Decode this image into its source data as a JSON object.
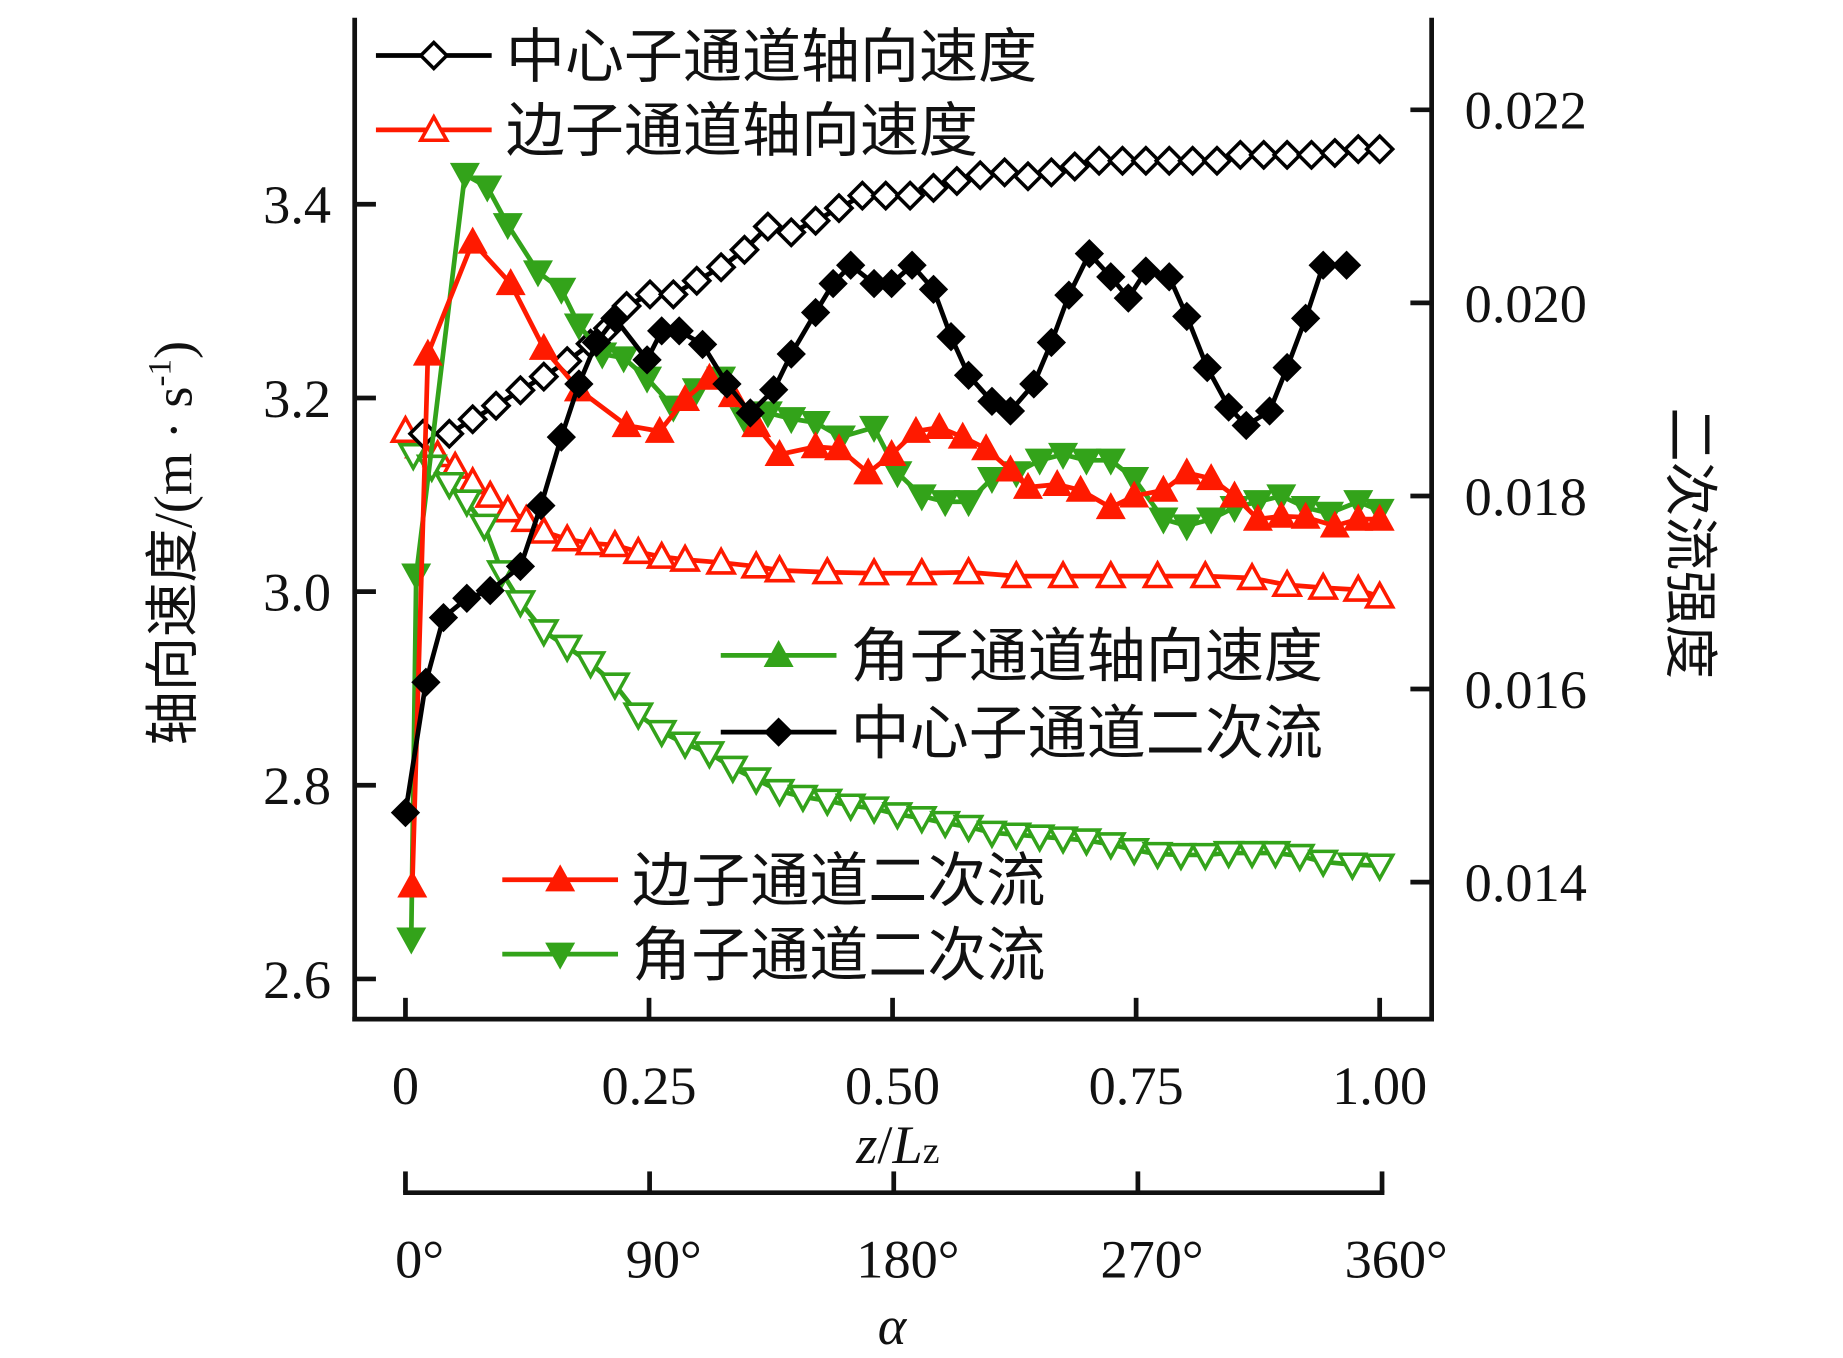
{
  "chart_data": {
    "type": "line",
    "xlabel": "z/Lz",
    "xlabel_parts": {
      "z": "z",
      "slash": "/",
      "L": "L",
      "sub": "z"
    },
    "secondary_xlabel": "α",
    "ylabel_left": "轴向速度/(m · s",
    "ylabel_left_sup": "-1",
    "ylabel_left_close": ")",
    "ylabel_right": "二次流强度",
    "xlim": [
      0,
      1.0
    ],
    "ylim_left": [
      2.55,
      3.58
    ],
    "ylim_right": [
      0.013,
      0.0231
    ],
    "x_ticks": [
      "0",
      "0.25",
      "0.50",
      "0.75",
      "1.00"
    ],
    "x_tick_values": [
      0,
      0.25,
      0.5,
      0.75,
      1.0
    ],
    "alpha_ticks": [
      "0°",
      "90°",
      "180°",
      "270°",
      "360°"
    ],
    "alpha_tick_values": [
      0,
      0.25,
      0.5,
      0.75,
      1.0
    ],
    "y_left_ticks": [
      "2.6",
      "2.8",
      "3.0",
      "3.2",
      "3.4"
    ],
    "y_left_tick_values": [
      2.6,
      2.8,
      3.0,
      3.2,
      3.4
    ],
    "y_right_ticks": [
      "0.014",
      "0.016",
      "0.018",
      "0.020",
      "0.022"
    ],
    "y_right_tick_values": [
      0.014,
      0.016,
      0.018,
      0.02,
      0.022
    ],
    "grid": false,
    "series": [
      {
        "name": "中心子通道轴向速度",
        "axis": "left",
        "color": "#000000",
        "marker": "diamond-open",
        "x": [
          0.018,
          0.045,
          0.069,
          0.093,
          0.118,
          0.142,
          0.166,
          0.19,
          0.208,
          0.227,
          0.251,
          0.275,
          0.299,
          0.324,
          0.348,
          0.372,
          0.396,
          0.421,
          0.445,
          0.469,
          0.493,
          0.518,
          0.542,
          0.566,
          0.59,
          0.615,
          0.639,
          0.663,
          0.687,
          0.712,
          0.736,
          0.76,
          0.784,
          0.808,
          0.833,
          0.857,
          0.881,
          0.905,
          0.93,
          0.954,
          0.978,
          1.0
        ],
        "y": [
          3.163,
          3.163,
          3.178,
          3.192,
          3.208,
          3.222,
          3.238,
          3.256,
          3.272,
          3.295,
          3.307,
          3.307,
          3.321,
          3.335,
          3.353,
          3.377,
          3.371,
          3.383,
          3.396,
          3.409,
          3.409,
          3.409,
          3.417,
          3.424,
          3.43,
          3.433,
          3.429,
          3.433,
          3.439,
          3.445,
          3.445,
          3.445,
          3.445,
          3.445,
          3.445,
          3.451,
          3.451,
          3.451,
          3.451,
          3.453,
          3.457,
          3.457
        ]
      },
      {
        "name": "边子通道轴向速度",
        "axis": "left",
        "color": "#ff1a00",
        "marker": "triangle-up-open",
        "x": [
          0,
          0.015,
          0.033,
          0.051,
          0.069,
          0.087,
          0.105,
          0.124,
          0.142,
          0.166,
          0.19,
          0.215,
          0.239,
          0.263,
          0.287,
          0.324,
          0.36,
          0.384,
          0.433,
          0.481,
          0.53,
          0.578,
          0.627,
          0.675,
          0.724,
          0.772,
          0.821,
          0.869,
          0.905,
          0.942,
          0.978,
          1.0
        ],
        "y": [
          3.166,
          3.15,
          3.141,
          3.129,
          3.113,
          3.099,
          3.084,
          3.074,
          3.062,
          3.054,
          3.05,
          3.048,
          3.041,
          3.036,
          3.033,
          3.03,
          3.026,
          3.022,
          3.02,
          3.019,
          3.019,
          3.02,
          3.016,
          3.016,
          3.016,
          3.016,
          3.016,
          3.014,
          3.007,
          3.004,
          3.002,
          2.995
        ]
      },
      {
        "name": "角子通道轴向速度",
        "axis": "left",
        "color": "#33a31a",
        "marker": "triangle-down-open",
        "x": [
          0.008,
          0.027,
          0.045,
          0.063,
          0.081,
          0.099,
          0.118,
          0.142,
          0.166,
          0.19,
          0.215,
          0.239,
          0.263,
          0.287,
          0.312,
          0.336,
          0.36,
          0.384,
          0.408,
          0.433,
          0.457,
          0.481,
          0.505,
          0.53,
          0.554,
          0.578,
          0.602,
          0.627,
          0.651,
          0.675,
          0.699,
          0.724,
          0.748,
          0.772,
          0.796,
          0.821,
          0.845,
          0.869,
          0.893,
          0.918,
          0.942,
          0.972,
          1.0
        ],
        "y": [
          3.141,
          3.129,
          3.111,
          3.093,
          3.068,
          3.02,
          2.989,
          2.959,
          2.943,
          2.926,
          2.904,
          2.873,
          2.855,
          2.843,
          2.833,
          2.818,
          2.806,
          2.794,
          2.788,
          2.784,
          2.779,
          2.776,
          2.77,
          2.766,
          2.761,
          2.757,
          2.751,
          2.749,
          2.747,
          2.745,
          2.743,
          2.739,
          2.733,
          2.729,
          2.728,
          2.728,
          2.73,
          2.73,
          2.73,
          2.727,
          2.721,
          2.718,
          2.717
        ]
      },
      {
        "name": "中心子通道二次流",
        "axis": "right",
        "color": "#000000",
        "marker": "diamond-filled",
        "x": [
          0,
          0.021,
          0.039,
          0.063,
          0.087,
          0.118,
          0.139,
          0.16,
          0.178,
          0.196,
          0.215,
          0.248,
          0.263,
          0.281,
          0.305,
          0.33,
          0.354,
          0.378,
          0.396,
          0.421,
          0.439,
          0.457,
          0.481,
          0.499,
          0.52,
          0.542,
          0.56,
          0.578,
          0.602,
          0.621,
          0.645,
          0.663,
          0.681,
          0.702,
          0.724,
          0.742,
          0.76,
          0.784,
          0.802,
          0.823,
          0.845,
          0.863,
          0.887,
          0.905,
          0.924,
          0.942,
          0.966
        ],
        "y": [
          0.01472,
          0.01607,
          0.01674,
          0.01694,
          0.01702,
          0.01727,
          0.0179,
          0.01861,
          0.01916,
          0.01959,
          0.01984,
          0.01941,
          0.01971,
          0.01971,
          0.01957,
          0.01916,
          0.01886,
          0.0191,
          0.01947,
          0.0199,
          0.0202,
          0.02039,
          0.0202,
          0.0202,
          0.02039,
          0.02014,
          0.01965,
          0.01925,
          0.01898,
          0.01888,
          0.01916,
          0.01959,
          0.02008,
          0.02051,
          0.02027,
          0.02005,
          0.02033,
          0.02027,
          0.01986,
          0.01933,
          0.01892,
          0.01873,
          0.01888,
          0.01933,
          0.01984,
          0.02039,
          0.02039
        ]
      },
      {
        "name": "边子通道二次流",
        "axis": "right",
        "color": "#ff1a00",
        "marker": "triangle-up-filled",
        "x": [
          0.007,
          0.023,
          0.069,
          0.108,
          0.142,
          0.178,
          0.227,
          0.261,
          0.287,
          0.312,
          0.336,
          0.36,
          0.384,
          0.421,
          0.445,
          0.475,
          0.499,
          0.524,
          0.548,
          0.572,
          0.596,
          0.621,
          0.639,
          0.669,
          0.693,
          0.724,
          0.748,
          0.778,
          0.802,
          0.827,
          0.851,
          0.875,
          0.899,
          0.924,
          0.954,
          0.978,
          1.0
        ],
        "y": [
          0.01396,
          0.01947,
          0.02063,
          0.0202,
          0.01953,
          0.0191,
          0.01873,
          0.01867,
          0.019,
          0.01922,
          0.01904,
          0.01873,
          0.01843,
          0.01851,
          0.01849,
          0.01824,
          0.01843,
          0.01867,
          0.01871,
          0.01861,
          0.01849,
          0.01827,
          0.01809,
          0.01812,
          0.01806,
          0.01788,
          0.018,
          0.01806,
          0.01824,
          0.01818,
          0.018,
          0.01776,
          0.01779,
          0.01778,
          0.01769,
          0.01776,
          0.01776
        ]
      },
      {
        "name": "角子通道二次流",
        "axis": "right",
        "color": "#33a31a",
        "marker": "triangle-down-filled",
        "x": [
          0.006,
          0.011,
          0.061,
          0.084,
          0.105,
          0.136,
          0.16,
          0.178,
          0.202,
          0.224,
          0.248,
          0.275,
          0.299,
          0.324,
          0.348,
          0.372,
          0.396,
          0.421,
          0.447,
          0.481,
          0.505,
          0.53,
          0.554,
          0.578,
          0.602,
          0.627,
          0.651,
          0.675,
          0.699,
          0.724,
          0.748,
          0.778,
          0.802,
          0.827,
          0.851,
          0.875,
          0.899,
          0.924,
          0.948,
          0.978,
          1.0
        ],
        "y": [
          0.01341,
          0.01718,
          0.02133,
          0.0212,
          0.02081,
          0.02032,
          0.02014,
          0.01977,
          0.01947,
          0.01943,
          0.01922,
          0.01892,
          0.0191,
          0.01922,
          0.0188,
          0.01886,
          0.0188,
          0.01876,
          0.01861,
          0.01871,
          0.01824,
          0.018,
          0.01794,
          0.01794,
          0.01818,
          0.01824,
          0.01837,
          0.01843,
          0.01837,
          0.01837,
          0.01818,
          0.01776,
          0.01769,
          0.01776,
          0.01788,
          0.01794,
          0.018,
          0.01788,
          0.01782,
          0.01794,
          0.01785
        ]
      }
    ],
    "legend": [
      {
        "label": "中心子通道轴向速度",
        "series": 0,
        "placement": "top-left"
      },
      {
        "label": "边子通道轴向速度",
        "series": 1,
        "placement": "top-left"
      },
      {
        "label": "角子通道轴向速度",
        "series": 2,
        "marker": "triangle-up-filled",
        "placement": "center-right"
      },
      {
        "label": "中心子通道二次流",
        "series": 3,
        "placement": "center-right"
      },
      {
        "label": "边子通道二次流",
        "series": 4,
        "placement": "bottom-center"
      },
      {
        "label": "角子通道二次流",
        "series": 5,
        "placement": "bottom-center"
      }
    ]
  }
}
